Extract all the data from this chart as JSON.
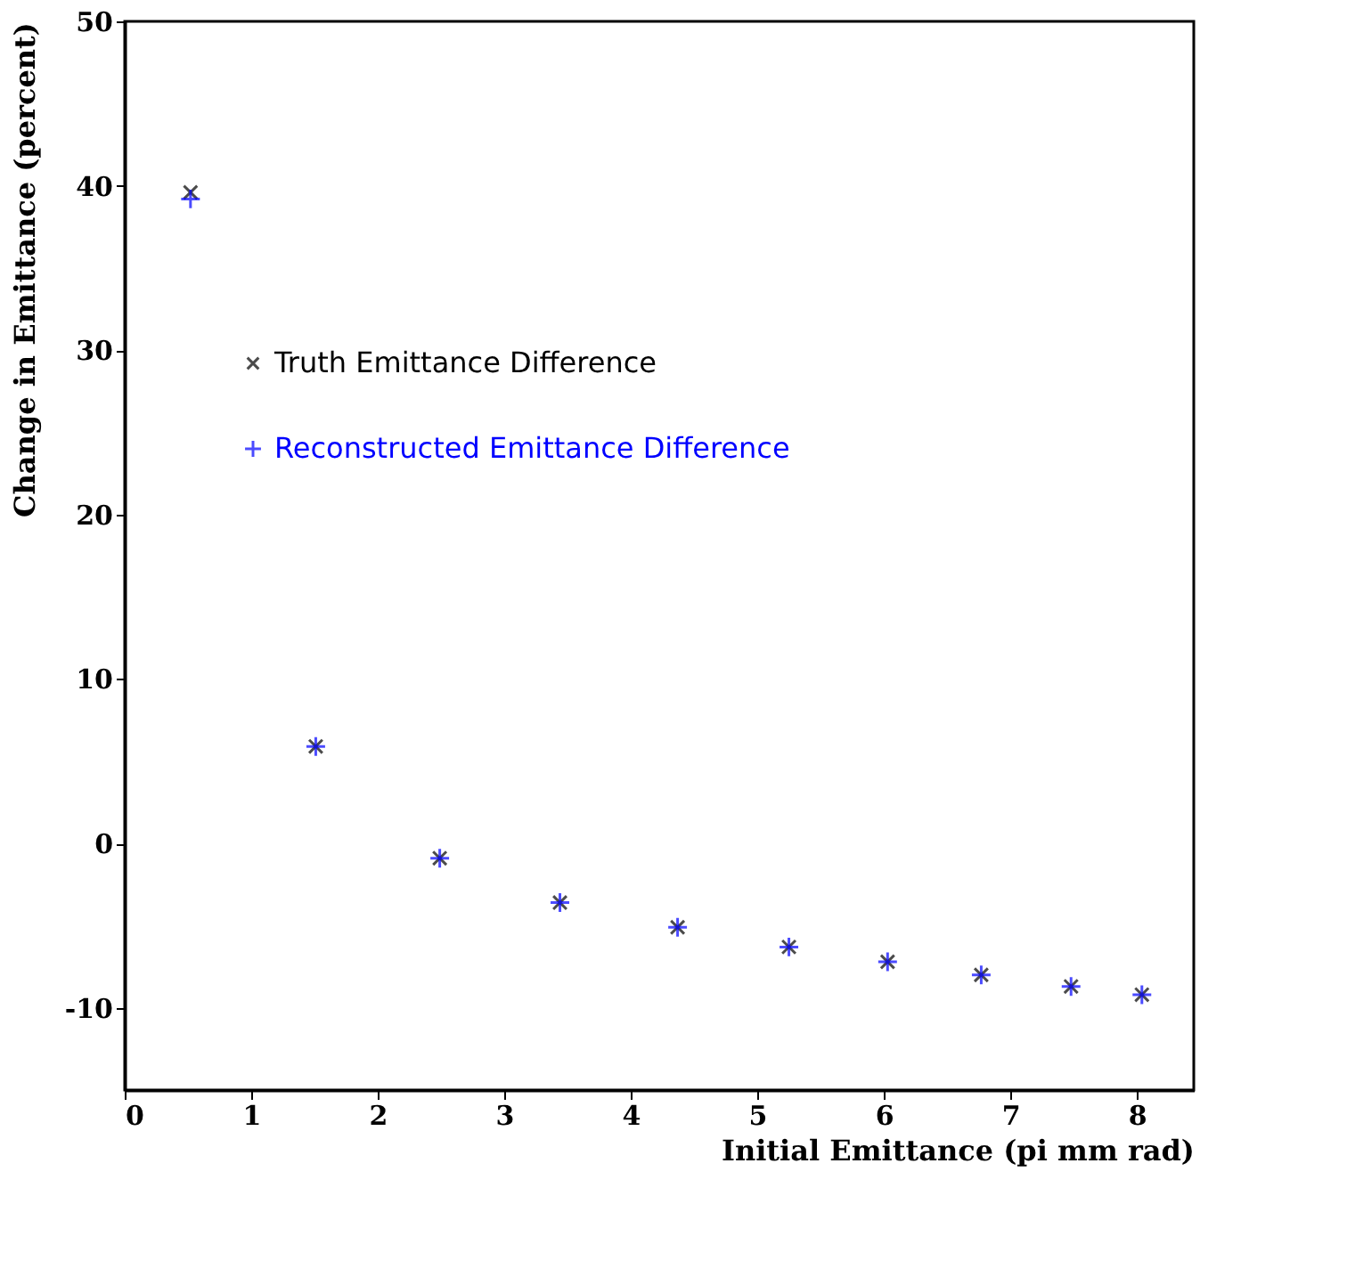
{
  "chart_data": {
    "type": "scatter",
    "xlabel": "Initial Emittance (pi mm rad)",
    "ylabel": "Change in Emittance (percent)",
    "x": [
      0.52,
      1.51,
      2.49,
      3.44,
      4.37,
      5.25,
      6.03,
      6.77,
      7.48,
      8.04
    ],
    "series": [
      {
        "name": "Truth Emittance Difference",
        "color": "#000000",
        "marker": "x",
        "values": [
          39.6,
          5.9,
          -0.9,
          -3.6,
          -5.1,
          -6.3,
          -7.2,
          -8.0,
          -8.7,
          -9.2
        ]
      },
      {
        "name": "Reconstructed Emittance Difference",
        "color": "#0000ff",
        "marker": "cross",
        "values": [
          39.2,
          5.9,
          -0.9,
          -3.6,
          -5.1,
          -6.3,
          -7.2,
          -8.0,
          -8.7,
          -9.2
        ]
      }
    ],
    "xlim": [
      0,
      8.45
    ],
    "xticks": [
      0,
      1,
      2,
      3,
      4,
      5,
      6,
      7,
      8
    ],
    "ylim": [
      -15,
      50
    ],
    "yticks": [
      -10,
      0,
      10,
      20,
      30,
      40,
      50
    ],
    "grid": false,
    "legend": "top left"
  }
}
